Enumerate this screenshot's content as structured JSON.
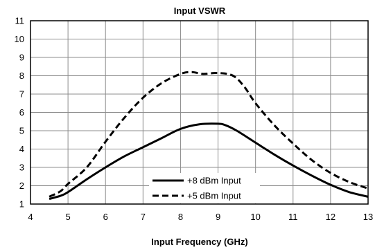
{
  "chart_data": {
    "type": "line",
    "title": "Input VSWR",
    "xlabel": "Input Frequency (GHz)",
    "ylabel": "",
    "xlim": [
      4,
      13
    ],
    "ylim": [
      1,
      11
    ],
    "xticks": [
      4,
      5,
      6,
      7,
      8,
      9,
      10,
      11,
      12,
      13
    ],
    "yticks": [
      1,
      2,
      3,
      4,
      5,
      6,
      7,
      8,
      9,
      10,
      11
    ],
    "grid": true,
    "legend_position": "bottom-center",
    "series": [
      {
        "name": "+8 dBm Input",
        "style": "solid",
        "color": "#000000",
        "x": [
          4.5,
          4.8,
          5.0,
          5.5,
          6.0,
          6.5,
          7.0,
          7.5,
          8.0,
          8.5,
          9.0,
          9.2,
          9.5,
          10.0,
          10.5,
          11.0,
          11.5,
          12.0,
          12.5,
          13.0
        ],
        "y": [
          1.28,
          1.45,
          1.65,
          2.35,
          3.0,
          3.6,
          4.1,
          4.6,
          5.1,
          5.35,
          5.38,
          5.3,
          5.0,
          4.35,
          3.7,
          3.1,
          2.55,
          2.05,
          1.65,
          1.4
        ]
      },
      {
        "name": "+5 dBm Input",
        "style": "dashed",
        "color": "#000000",
        "x": [
          4.5,
          4.8,
          5.0,
          5.5,
          6.0,
          6.5,
          7.0,
          7.5,
          8.0,
          8.3,
          8.6,
          9.0,
          9.4,
          9.7,
          10.0,
          10.5,
          11.0,
          11.5,
          12.0,
          12.5,
          13.0
        ],
        "y": [
          1.4,
          1.7,
          2.1,
          3.0,
          4.4,
          5.7,
          6.8,
          7.6,
          8.1,
          8.2,
          8.1,
          8.15,
          8.0,
          7.4,
          6.5,
          5.3,
          4.3,
          3.4,
          2.7,
          2.2,
          1.85
        ]
      }
    ]
  }
}
